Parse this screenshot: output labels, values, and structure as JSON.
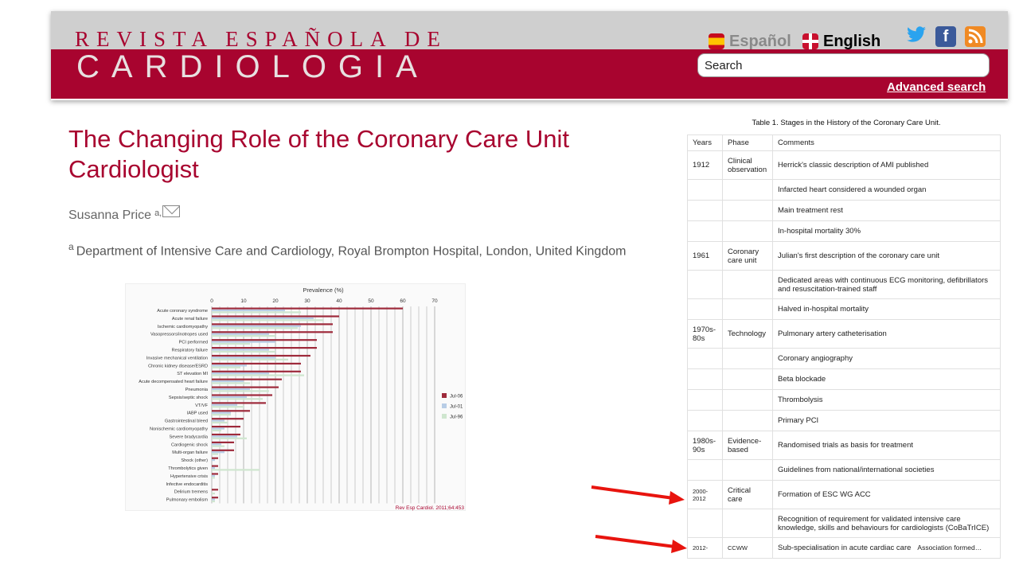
{
  "header": {
    "logo_line1": "REVISTA ESPAÑOLA DE",
    "logo_line2": "CARDIOLOGIA",
    "lang_es": "Español",
    "lang_en": "English",
    "social": {
      "twitter": "twitter-icon",
      "facebook": "facebook-icon",
      "rss": "rss-icon"
    },
    "search_placeholder": "Search",
    "advanced_search": "Advanced search",
    "colors": {
      "brand": "#a8042f",
      "banner_gray": "#cfcfcf"
    }
  },
  "article": {
    "title": "The Changing Role of the Coronary Care Unit Cardiologist",
    "author": "Susanna Price",
    "author_sup": "a,",
    "affil_sup": "a",
    "affiliation": "Department of Intensive Care and Cardiology, Royal Brompton Hospital, London, United Kingdom"
  },
  "chart_data": {
    "type": "bar",
    "orientation": "horizontal",
    "title": "Prevalence (%)",
    "source": "Rev Esp Cardiol. 2011;64:453",
    "xlim": [
      0,
      70
    ],
    "xticks": [
      "0",
      "10",
      "20",
      "30",
      "40",
      "50",
      "60",
      "70"
    ],
    "categories": [
      "Acute coronary syndrome",
      "Acute renal failure",
      "Ischemic cardiomyopathy",
      "Vasopressors/inotropes used",
      "PCI performed",
      "Respiratory failure",
      "Invasive mechanical ventilation",
      "Chronic kidney disease/ESRD",
      "ST elevation MI",
      "Acute decompensated heart failure",
      "Pneumonia",
      "Sepsis/septic shock",
      "VT/VF",
      "IABP used",
      "Gastrointestinal bleed",
      "Nonischemic cardiomyopathy",
      "Severe bradycardia",
      "Cardiogenic shock",
      "Multi-organ failure",
      "Shock (other)",
      "Thrombolytics given",
      "Hypertensive crisis",
      "Infective endocarditis",
      "Delirium tremens",
      "Pulmonary embolism"
    ],
    "series": [
      {
        "name": "Jul-06",
        "color": "#9e2a3b",
        "values": [
          60,
          40,
          38,
          38,
          33,
          33,
          31,
          28,
          28,
          22,
          21,
          19,
          17,
          12,
          10,
          9,
          9,
          7,
          7,
          2,
          2,
          2,
          0,
          2,
          2
        ]
      },
      {
        "name": "Jul-01",
        "color": "#b8cde6",
        "values": [
          23,
          32,
          28,
          18,
          20,
          18,
          20,
          11,
          18,
          10,
          12,
          11,
          8,
          6,
          4,
          4,
          8,
          3,
          4,
          1,
          1,
          1,
          0,
          0,
          1
        ]
      },
      {
        "name": "Jul-96",
        "color": "#cfe6cf",
        "values": [
          28,
          35,
          27,
          20,
          12,
          20,
          24,
          9,
          29,
          12,
          18,
          16,
          10,
          6,
          5,
          3,
          11,
          4,
          2,
          0,
          15,
          1,
          0,
          1,
          1
        ]
      }
    ],
    "legend_position": "right"
  },
  "table": {
    "caption": "Table 1. Stages in the History of the Coronary Care Unit.",
    "headers": [
      "Years",
      "Phase",
      "Comments"
    ],
    "rows": [
      {
        "year": "1912",
        "phase": "Clinical observation",
        "comment": "Herrick's classic description of AMI published"
      },
      {
        "year": "",
        "phase": "",
        "comment": "Infarcted heart considered a wounded organ"
      },
      {
        "year": "",
        "phase": "",
        "comment": "Main treatment rest"
      },
      {
        "year": "",
        "phase": "",
        "comment": "In-hospital mortality 30%"
      },
      {
        "year": "1961",
        "phase": "Coronary care unit",
        "comment": "Julian's first description of the coronary care unit"
      },
      {
        "year": "",
        "phase": "",
        "comment": "Dedicated areas with continuous ECG monitoring, defibrillators and resuscitation-trained staff"
      },
      {
        "year": "",
        "phase": "",
        "comment": "Halved in-hospital mortality"
      },
      {
        "year": "1970s-80s",
        "phase": "Technology",
        "comment": "Pulmonary artery catheterisation"
      },
      {
        "year": "",
        "phase": "",
        "comment": "Coronary angiography"
      },
      {
        "year": "",
        "phase": "",
        "comment": "Beta blockade"
      },
      {
        "year": "",
        "phase": "",
        "comment": "Thrombolysis"
      },
      {
        "year": "",
        "phase": "",
        "comment": "Primary PCI"
      },
      {
        "year": "1980s-90s",
        "phase": "Evidence-based",
        "comment": "Randomised trials as basis for treatment"
      },
      {
        "year": "",
        "phase": "",
        "comment": "Guidelines from national/international societies"
      },
      {
        "year": "2000-2012",
        "phase": "Critical care",
        "comment": "Formation of ESC WG ACC",
        "year_small": true
      },
      {
        "year": "",
        "phase": "",
        "comment": "Recognition of requirement for validated intensive care knowledge, skills and behaviours for cardiologists (CoBaTrICE)"
      },
      {
        "year": "2012-",
        "phase": "CCWW",
        "comment": "Sub-specialisation in acute cardiac care",
        "extra": "Association formed…",
        "year_small": true,
        "phase_small": true
      }
    ]
  },
  "annotations": {
    "arrow_color": "#e8140e"
  }
}
